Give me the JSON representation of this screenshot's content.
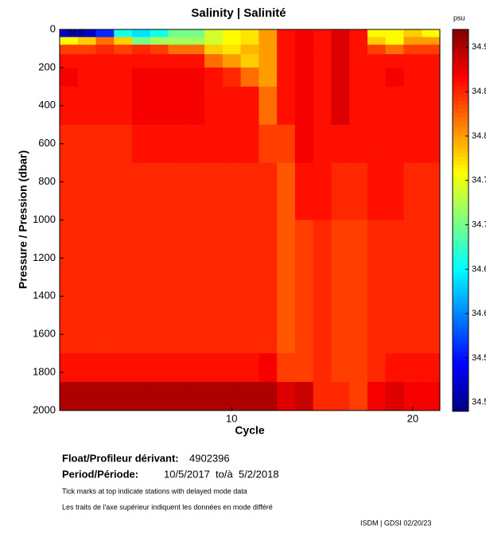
{
  "chart_data": {
    "type": "heatmap",
    "title": "Salinity | Salinité",
    "x_label": "Cycle",
    "y_label": "Pressure / Pression (dbar)",
    "x": [
      1,
      2,
      3,
      4,
      5,
      6,
      7,
      8,
      9,
      10,
      11,
      12,
      13,
      14,
      15,
      16,
      17,
      18,
      19,
      20,
      21
    ],
    "y_edges": [
      0,
      40,
      80,
      130,
      200,
      300,
      500,
      700,
      1000,
      1400,
      1700,
      1850,
      2000
    ],
    "values": [
      [
        34.52,
        34.76,
        34.84,
        34.86,
        34.87,
        34.86,
        34.85,
        34.85,
        34.85,
        34.85,
        34.86,
        34.9
      ],
      [
        34.52,
        34.78,
        34.84,
        34.86,
        34.86,
        34.86,
        34.85,
        34.85,
        34.85,
        34.85,
        34.86,
        34.9
      ],
      [
        34.56,
        34.82,
        34.85,
        34.86,
        34.86,
        34.86,
        34.85,
        34.85,
        34.85,
        34.85,
        34.86,
        34.9
      ],
      [
        34.66,
        34.78,
        34.84,
        34.86,
        34.86,
        34.86,
        34.85,
        34.85,
        34.85,
        34.85,
        34.86,
        34.9
      ],
      [
        34.64,
        34.7,
        34.85,
        34.86,
        34.87,
        34.87,
        34.86,
        34.85,
        34.85,
        34.85,
        34.86,
        34.9
      ],
      [
        34.66,
        34.72,
        34.84,
        34.86,
        34.87,
        34.87,
        34.86,
        34.85,
        34.85,
        34.85,
        34.86,
        34.9
      ],
      [
        34.7,
        34.72,
        34.82,
        34.86,
        34.87,
        34.87,
        34.86,
        34.85,
        34.85,
        34.85,
        34.86,
        34.9
      ],
      [
        34.7,
        34.72,
        34.82,
        34.86,
        34.87,
        34.87,
        34.86,
        34.85,
        34.85,
        34.85,
        34.86,
        34.9
      ],
      [
        34.74,
        34.74,
        34.78,
        34.82,
        34.86,
        34.86,
        34.86,
        34.85,
        34.85,
        34.85,
        34.86,
        34.9
      ],
      [
        34.76,
        34.76,
        34.77,
        34.8,
        34.85,
        34.86,
        34.86,
        34.85,
        34.85,
        34.85,
        34.86,
        34.9
      ],
      [
        34.77,
        34.77,
        34.79,
        34.78,
        34.82,
        34.86,
        34.86,
        34.85,
        34.85,
        34.85,
        34.86,
        34.9
      ],
      [
        34.8,
        34.8,
        34.8,
        34.8,
        34.8,
        34.82,
        34.84,
        34.85,
        34.85,
        34.85,
        34.87,
        34.9
      ],
      [
        34.86,
        34.86,
        34.86,
        34.86,
        34.86,
        34.86,
        34.84,
        34.83,
        34.83,
        34.83,
        34.84,
        34.88
      ],
      [
        34.87,
        34.87,
        34.87,
        34.87,
        34.87,
        34.87,
        34.87,
        34.86,
        34.84,
        34.84,
        34.84,
        34.89
      ],
      [
        34.86,
        34.86,
        34.86,
        34.86,
        34.86,
        34.86,
        34.86,
        34.86,
        34.85,
        34.85,
        34.85,
        34.85
      ],
      [
        34.88,
        34.88,
        34.88,
        34.88,
        34.88,
        34.88,
        34.86,
        34.85,
        34.84,
        34.84,
        34.84,
        34.85
      ],
      [
        34.86,
        34.86,
        34.86,
        34.86,
        34.86,
        34.86,
        34.86,
        34.85,
        34.84,
        34.84,
        34.84,
        34.84
      ],
      [
        34.76,
        34.78,
        34.84,
        34.86,
        34.86,
        34.86,
        34.86,
        34.86,
        34.85,
        34.85,
        34.85,
        34.87
      ],
      [
        34.76,
        34.76,
        34.82,
        34.86,
        34.87,
        34.86,
        34.86,
        34.86,
        34.85,
        34.85,
        34.86,
        34.88
      ],
      [
        34.78,
        34.8,
        34.84,
        34.86,
        34.86,
        34.86,
        34.86,
        34.85,
        34.85,
        34.85,
        34.86,
        34.87
      ],
      [
        34.76,
        34.8,
        34.84,
        34.86,
        34.86,
        34.86,
        34.86,
        34.85,
        34.85,
        34.85,
        34.86,
        34.87
      ]
    ],
    "xlim": [
      0.5,
      21.5
    ],
    "xticks": [
      10,
      20
    ],
    "ylim": [
      0,
      2000
    ],
    "y_inverted": true,
    "yticks": [
      0,
      200,
      400,
      600,
      800,
      1000,
      1200,
      1400,
      1600,
      1800,
      2000
    ],
    "colormap": "jet",
    "color_label": "psu",
    "clim": [
      34.49,
      34.92
    ],
    "cticks": [
      {
        "value": 34.9,
        "label": "34.9"
      },
      {
        "value": 34.85,
        "label": "34.8"
      },
      {
        "value": 34.8,
        "label": "34.8"
      },
      {
        "value": 34.75,
        "label": "34.7"
      },
      {
        "value": 34.7,
        "label": "34.7"
      },
      {
        "value": 34.65,
        "label": "34.6"
      },
      {
        "value": 34.6,
        "label": "34.6"
      },
      {
        "value": 34.55,
        "label": "34.5"
      },
      {
        "value": 34.5,
        "label": "34.5"
      }
    ],
    "annotation": "34.5"
  },
  "info": {
    "float_label": "Float/Profileur dérivant:",
    "float_id": "4902396",
    "period_label": "Period/Période:",
    "period": "10/5/2017  to/à  5/2/2018",
    "note_en": "Tick marks at top indicate stations with delayed mode data",
    "note_fr": "Les traits de l'axe supérieur indiquent les données en mode différé",
    "footer": "ISDM | GDSI 02/20/23"
  }
}
